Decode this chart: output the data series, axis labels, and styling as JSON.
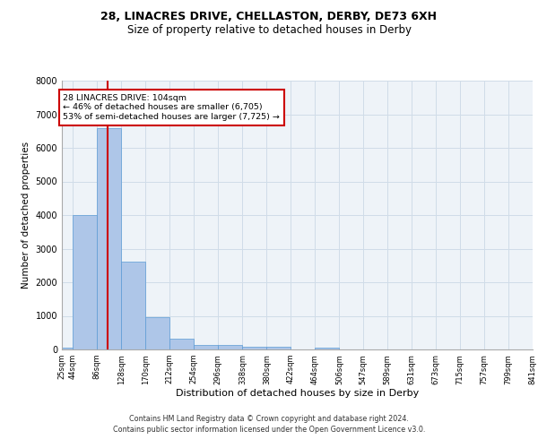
{
  "title_line1": "28, LINACRES DRIVE, CHELLASTON, DERBY, DE73 6XH",
  "title_line2": "Size of property relative to detached houses in Derby",
  "xlabel": "Distribution of detached houses by size in Derby",
  "ylabel": "Number of detached properties",
  "footnote1": "Contains HM Land Registry data © Crown copyright and database right 2024.",
  "footnote2": "Contains public sector information licensed under the Open Government Licence v3.0.",
  "bar_edges": [
    25,
    44,
    86,
    128,
    170,
    212,
    254,
    296,
    338,
    380,
    422,
    464,
    506,
    547,
    589,
    631,
    673,
    715,
    757,
    799,
    841
  ],
  "bar_heights": [
    65,
    4000,
    6600,
    2620,
    950,
    330,
    140,
    130,
    70,
    70,
    0,
    65,
    0,
    0,
    0,
    0,
    0,
    0,
    0,
    0
  ],
  "bar_color": "#aec6e8",
  "bar_edge_color": "#5b9bd5",
  "grid_color": "#d0dce8",
  "background_color": "#eef3f8",
  "annotation_box_color": "#cc0000",
  "vline_color": "#cc0000",
  "property_size": 104,
  "annotation_line1": "28 LINACRES DRIVE: 104sqm",
  "annotation_line2": "← 46% of detached houses are smaller (6,705)",
  "annotation_line3": "53% of semi-detached houses are larger (7,725) →",
  "ylim": [
    0,
    8000
  ],
  "yticks": [
    0,
    1000,
    2000,
    3000,
    4000,
    5000,
    6000,
    7000,
    8000
  ],
  "xtick_labels": [
    "25sqm",
    "44sqm",
    "86sqm",
    "128sqm",
    "170sqm",
    "212sqm",
    "254sqm",
    "296sqm",
    "338sqm",
    "380sqm",
    "422sqm",
    "464sqm",
    "506sqm",
    "547sqm",
    "589sqm",
    "631sqm",
    "673sqm",
    "715sqm",
    "757sqm",
    "799sqm",
    "841sqm"
  ]
}
